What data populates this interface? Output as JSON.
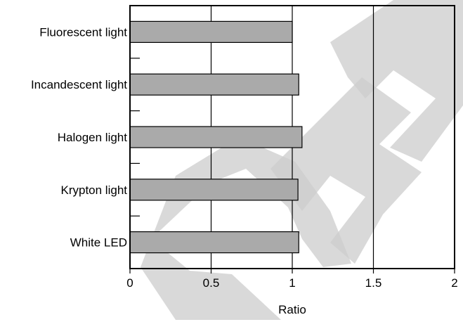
{
  "chart_data": {
    "type": "bar",
    "orientation": "horizontal",
    "categories": [
      "Fluorescent light",
      "Incandescent light",
      "Halogen light",
      "Krypton light",
      "White LED"
    ],
    "values": [
      1.0,
      1.04,
      1.06,
      1.035,
      1.04
    ],
    "xlabel": "Ratio",
    "xlim": [
      0,
      2
    ],
    "xticks": [
      0,
      0.5,
      1,
      1.5,
      2
    ],
    "xtick_labels": [
      "0",
      "0.5",
      "1",
      "1.5",
      "2"
    ],
    "vertical_grid": true,
    "bar_color": "#aaaaaa",
    "watermark_color": "#cccccc"
  }
}
